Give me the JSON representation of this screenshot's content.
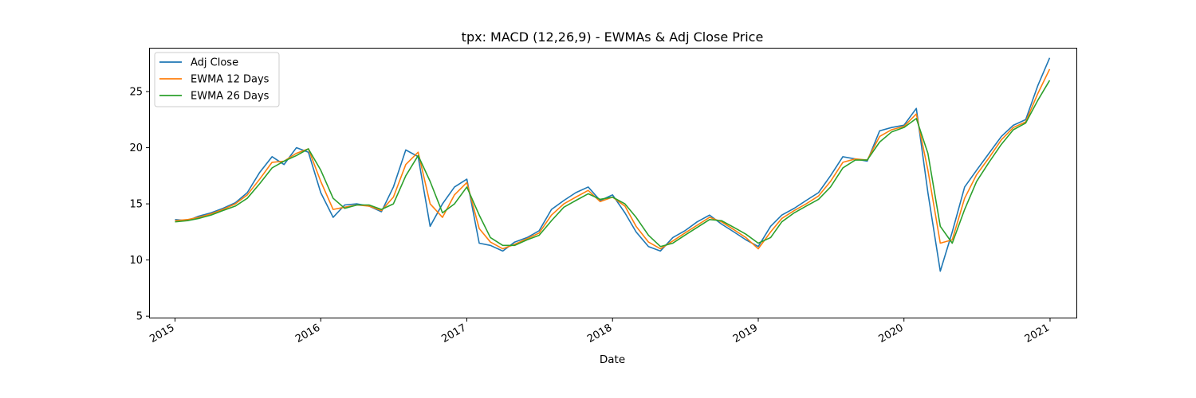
{
  "chart_data": {
    "type": "line",
    "title": "tpx: MACD (12,26,9) - EWMAs & Adj Close Price",
    "xlabel": "Date",
    "ylabel": "",
    "x_tick_labels": [
      "2015",
      "2016",
      "2017",
      "2018",
      "2019",
      "2020",
      "2021"
    ],
    "y_ticks": [
      5,
      10,
      15,
      20,
      25
    ],
    "xlim": [
      "2014-10-28",
      "2021-03-08"
    ],
    "ylim": [
      4.8,
      28.9
    ],
    "grid": false,
    "legend_position": "upper left",
    "x": [
      "2015-01-01",
      "2015-02-01",
      "2015-03-01",
      "2015-04-01",
      "2015-05-01",
      "2015-06-01",
      "2015-07-01",
      "2015-08-01",
      "2015-09-01",
      "2015-10-01",
      "2015-11-01",
      "2015-12-01",
      "2016-01-01",
      "2016-02-01",
      "2016-03-01",
      "2016-04-01",
      "2016-05-01",
      "2016-06-01",
      "2016-07-01",
      "2016-08-01",
      "2016-09-01",
      "2016-10-01",
      "2016-11-01",
      "2016-12-01",
      "2017-01-01",
      "2017-02-01",
      "2017-03-01",
      "2017-04-01",
      "2017-05-01",
      "2017-06-01",
      "2017-07-01",
      "2017-08-01",
      "2017-09-01",
      "2017-10-01",
      "2017-11-01",
      "2017-12-01",
      "2018-01-01",
      "2018-02-01",
      "2018-03-01",
      "2018-04-01",
      "2018-05-01",
      "2018-06-01",
      "2018-07-01",
      "2018-08-01",
      "2018-09-01",
      "2018-10-01",
      "2018-11-01",
      "2018-12-01",
      "2019-01-01",
      "2019-02-01",
      "2019-03-01",
      "2019-04-01",
      "2019-05-01",
      "2019-06-01",
      "2019-07-01",
      "2019-08-01",
      "2019-09-01",
      "2019-10-01",
      "2019-11-01",
      "2019-12-01",
      "2020-01-01",
      "2020-02-01",
      "2020-03-01",
      "2020-04-01",
      "2020-05-01",
      "2020-06-01",
      "2020-07-01",
      "2020-08-01",
      "2020-09-01",
      "2020-10-01",
      "2020-11-01",
      "2020-12-01",
      "2020-12-31"
    ],
    "series": [
      {
        "name": "Adj Close",
        "color": "#1f77b4",
        "values": [
          13.6,
          13.5,
          13.9,
          14.2,
          14.6,
          15.1,
          16.0,
          17.8,
          19.2,
          18.5,
          20.0,
          19.6,
          16.0,
          13.8,
          14.9,
          15.0,
          14.8,
          14.3,
          16.5,
          19.8,
          19.2,
          13.0,
          15.0,
          16.5,
          17.2,
          11.5,
          11.3,
          10.8,
          11.6,
          12.0,
          12.6,
          14.5,
          15.3,
          16.0,
          16.5,
          15.3,
          15.8,
          14.2,
          12.5,
          11.2,
          10.8,
          12.0,
          12.6,
          13.4,
          14.0,
          13.2,
          12.5,
          11.8,
          11.2,
          13.0,
          14.0,
          14.6,
          15.3,
          16.0,
          17.5,
          19.2,
          19.0,
          18.8,
          21.5,
          21.8,
          22.0,
          23.5,
          16.0,
          9.0,
          12.5,
          16.5,
          18.0,
          19.5,
          21.0,
          22.0,
          22.5,
          25.5,
          28.0
        ]
      },
      {
        "name": "EWMA 12 Days",
        "color": "#ff7f0e",
        "values": [
          13.5,
          13.6,
          13.8,
          14.1,
          14.5,
          15.0,
          15.8,
          17.2,
          18.7,
          18.8,
          19.5,
          19.9,
          17.0,
          14.5,
          14.7,
          14.9,
          14.8,
          14.4,
          15.6,
          18.5,
          19.6,
          15.0,
          13.8,
          15.8,
          16.9,
          12.8,
          11.6,
          11.0,
          11.4,
          11.9,
          12.4,
          14.0,
          15.0,
          15.6,
          16.2,
          15.2,
          15.6,
          14.8,
          13.0,
          11.6,
          11.0,
          11.7,
          12.4,
          13.1,
          13.8,
          13.4,
          12.7,
          12.0,
          11.0,
          12.5,
          13.7,
          14.4,
          15.0,
          15.7,
          17.0,
          18.7,
          19.0,
          18.9,
          21.0,
          21.6,
          21.9,
          23.0,
          18.0,
          11.5,
          11.8,
          15.5,
          17.6,
          19.1,
          20.7,
          21.8,
          22.3,
          24.8,
          27.0
        ]
      },
      {
        "name": "EWMA 26 Days",
        "color": "#2ca02c",
        "values": [
          13.4,
          13.5,
          13.7,
          14.0,
          14.4,
          14.8,
          15.5,
          16.8,
          18.2,
          18.8,
          19.3,
          19.9,
          18.0,
          15.5,
          14.6,
          14.9,
          14.9,
          14.5,
          15.0,
          17.5,
          19.3,
          17.0,
          14.2,
          15.0,
          16.5,
          14.0,
          12.0,
          11.3,
          11.3,
          11.8,
          12.2,
          13.5,
          14.7,
          15.3,
          15.9,
          15.4,
          15.6,
          15.0,
          13.8,
          12.2,
          11.2,
          11.5,
          12.2,
          12.9,
          13.6,
          13.5,
          12.9,
          12.3,
          11.5,
          12.0,
          13.4,
          14.2,
          14.8,
          15.4,
          16.5,
          18.2,
          18.9,
          18.9,
          20.5,
          21.4,
          21.8,
          22.6,
          19.5,
          13.0,
          11.5,
          14.5,
          17.0,
          18.7,
          20.3,
          21.6,
          22.2,
          24.2,
          26.0
        ]
      }
    ]
  }
}
